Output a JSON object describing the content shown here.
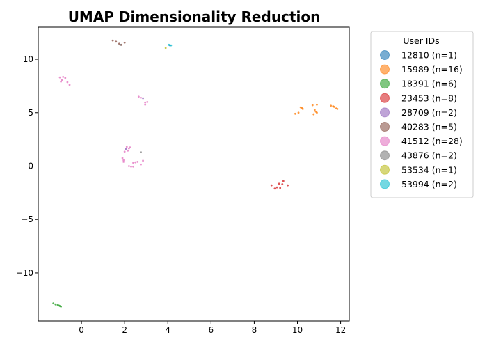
{
  "chart_data": {
    "type": "scatter",
    "title": "UMAP Dimensionality Reduction",
    "xlabel": "",
    "ylabel": "",
    "xlim": [
      -2.0,
      12.4
    ],
    "ylim": [
      -14.5,
      13.0
    ],
    "xticks": [
      0,
      2,
      4,
      6,
      8,
      10,
      12
    ],
    "yticks": [
      -10,
      -5,
      0,
      5,
      10
    ],
    "grid": false,
    "legend": {
      "title": "User IDs",
      "placement": "outside-right"
    },
    "series": [
      {
        "name": "12810 (n=1)",
        "color": "#1f77b4",
        "points": [
          [
            4.1,
            11.3
          ]
        ]
      },
      {
        "name": "15989 (n=16)",
        "color": "#ff7f0e",
        "points": [
          [
            9.9,
            4.9
          ],
          [
            10.05,
            5.0
          ],
          [
            10.15,
            5.5
          ],
          [
            10.25,
            5.35
          ],
          [
            10.7,
            5.7
          ],
          [
            10.75,
            4.85
          ],
          [
            10.8,
            5.25
          ],
          [
            10.9,
            5.75
          ],
          [
            10.9,
            5.0
          ],
          [
            11.55,
            5.65
          ],
          [
            11.65,
            5.6
          ],
          [
            11.7,
            5.55
          ],
          [
            11.8,
            5.4
          ],
          [
            11.85,
            5.35
          ],
          [
            10.2,
            5.45
          ],
          [
            10.85,
            5.1
          ]
        ]
      },
      {
        "name": "18391 (n=6)",
        "color": "#2ca02c",
        "points": [
          [
            -1.3,
            -12.85
          ],
          [
            -1.2,
            -12.95
          ],
          [
            -1.1,
            -13.0
          ],
          [
            -1.05,
            -13.05
          ],
          [
            -1.0,
            -13.1
          ],
          [
            -0.95,
            -13.15
          ]
        ]
      },
      {
        "name": "23453 (n=8)",
        "color": "#d62728",
        "points": [
          [
            8.8,
            -1.8
          ],
          [
            8.95,
            -2.1
          ],
          [
            9.05,
            -2.0
          ],
          [
            9.15,
            -1.65
          ],
          [
            9.2,
            -2.05
          ],
          [
            9.3,
            -1.7
          ],
          [
            9.35,
            -1.4
          ],
          [
            9.55,
            -1.8
          ]
        ]
      },
      {
        "name": "28709 (n=2)",
        "color": "#9467bd",
        "points": [
          [
            2.05,
            1.6
          ],
          [
            2.85,
            6.35
          ]
        ]
      },
      {
        "name": "40283 (n=5)",
        "color": "#8c564b",
        "points": [
          [
            1.45,
            11.75
          ],
          [
            1.6,
            11.65
          ],
          [
            1.75,
            11.45
          ],
          [
            1.85,
            11.35
          ],
          [
            2.0,
            11.55
          ]
        ]
      },
      {
        "name": "41512 (n=28)",
        "color": "#e377c2",
        "points": [
          [
            -1.0,
            8.3
          ],
          [
            -0.9,
            8.05
          ],
          [
            -0.85,
            8.35
          ],
          [
            -0.75,
            8.25
          ],
          [
            -0.65,
            7.85
          ],
          [
            -0.55,
            7.6
          ],
          [
            -0.95,
            7.9
          ],
          [
            2.65,
            6.5
          ],
          [
            2.75,
            6.4
          ],
          [
            2.95,
            5.95
          ],
          [
            3.05,
            6.0
          ],
          [
            2.95,
            5.75
          ],
          [
            1.9,
            0.75
          ],
          [
            1.95,
            0.4
          ],
          [
            2.0,
            1.35
          ],
          [
            2.1,
            1.8
          ],
          [
            2.2,
            1.65
          ],
          [
            2.15,
            1.45
          ],
          [
            2.2,
            0.0
          ],
          [
            2.3,
            -0.05
          ],
          [
            2.4,
            0.3
          ],
          [
            2.4,
            -0.05
          ],
          [
            2.6,
            0.4
          ],
          [
            2.75,
            0.15
          ],
          [
            2.85,
            0.5
          ],
          [
            2.25,
            1.75
          ],
          [
            1.95,
            0.55
          ],
          [
            2.5,
            0.35
          ]
        ]
      },
      {
        "name": "43876 (n=2)",
        "color": "#7f7f7f",
        "points": [
          [
            1.8,
            11.35
          ],
          [
            2.75,
            1.3
          ]
        ]
      },
      {
        "name": "53534 (n=1)",
        "color": "#bcbd22",
        "points": [
          [
            3.9,
            11.05
          ]
        ]
      },
      {
        "name": "53994 (n=2)",
        "color": "#17becf",
        "points": [
          [
            4.05,
            11.35
          ],
          [
            4.15,
            11.3
          ]
        ]
      }
    ]
  }
}
